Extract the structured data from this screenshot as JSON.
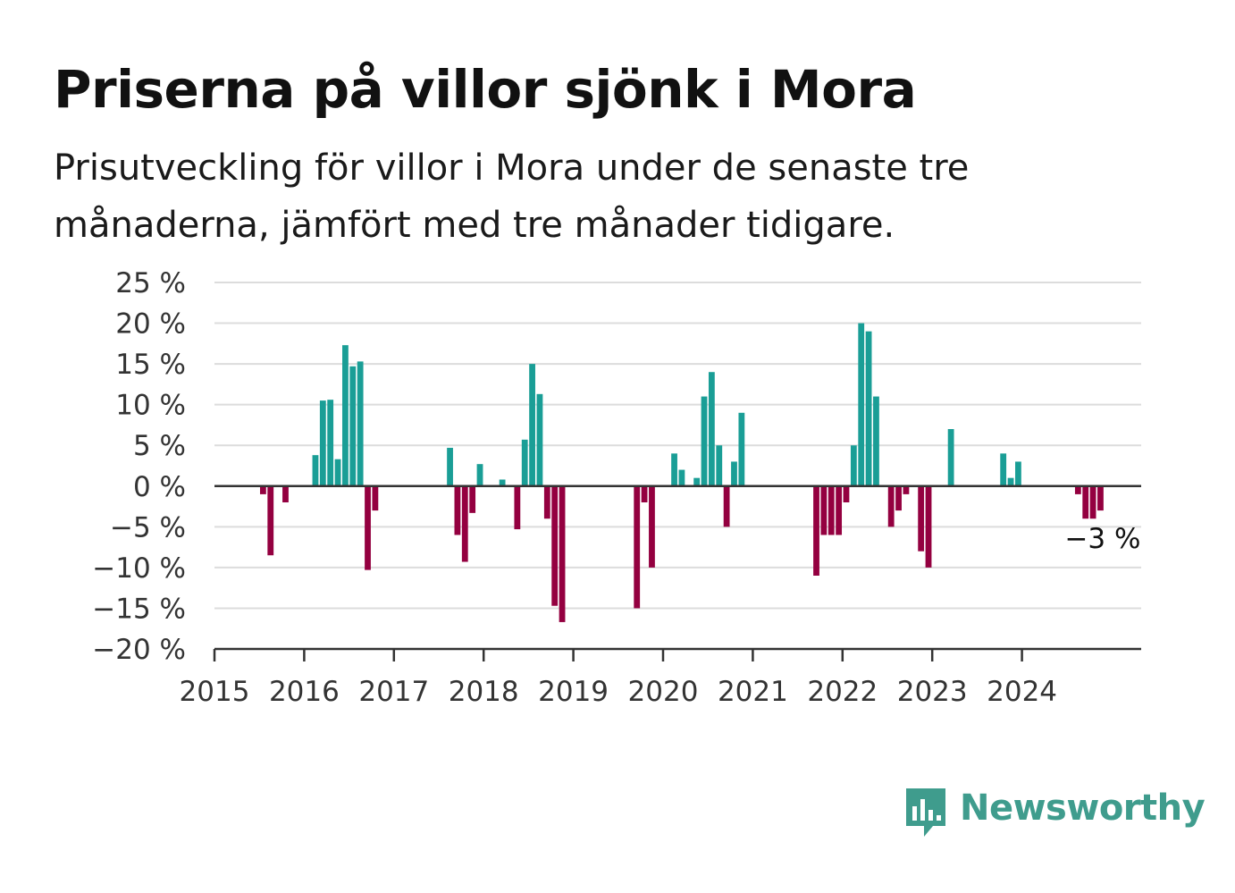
{
  "header": {
    "title": "Priserna på villor sjönk i Mora",
    "subtitle": "Prisutveckling för villor i Mora under de senaste tre månaderna, jämfört med tre månader tidigare."
  },
  "chart_data": {
    "type": "bar",
    "y_unit": "%",
    "ylim": [
      -20,
      25
    ],
    "y_ticks": [
      25,
      20,
      15,
      10,
      5,
      0,
      -5,
      -10,
      -15,
      -20
    ],
    "y_tick_labels": [
      "25 %",
      "20 %",
      "15 %",
      "10 %",
      "5 %",
      "0 %",
      "−5 %",
      "−10 %",
      "−15 %",
      "−20 %"
    ],
    "x_ticks": [
      "2015",
      "2016",
      "2017",
      "2018",
      "2019",
      "2020",
      "2021",
      "2022",
      "2023",
      "2024"
    ],
    "grid": true,
    "colors": {
      "positive": "#1a9e96",
      "negative": "#940040",
      "grid": "#dcdcdc",
      "axis": "#333333"
    },
    "annotation": {
      "label": "−3 %",
      "date": "2024-11",
      "value": -3
    },
    "series": [
      {
        "points": [
          {
            "date": "2015-01",
            "value": 0
          },
          {
            "date": "2015-02",
            "value": 0
          },
          {
            "date": "2015-03",
            "value": 0
          },
          {
            "date": "2015-04",
            "value": 0
          },
          {
            "date": "2015-05",
            "value": 0
          },
          {
            "date": "2015-06",
            "value": 0
          },
          {
            "date": "2015-07",
            "value": -1
          },
          {
            "date": "2015-08",
            "value": -8.5
          },
          {
            "date": "2015-09",
            "value": 0
          },
          {
            "date": "2015-10",
            "value": -2
          },
          {
            "date": "2015-11",
            "value": 0
          },
          {
            "date": "2015-12",
            "value": 0
          },
          {
            "date": "2016-01",
            "value": 0
          },
          {
            "date": "2016-02",
            "value": 3.8
          },
          {
            "date": "2016-03",
            "value": 10.5
          },
          {
            "date": "2016-04",
            "value": 10.6
          },
          {
            "date": "2016-05",
            "value": 3.3
          },
          {
            "date": "2016-06",
            "value": 17.3
          },
          {
            "date": "2016-07",
            "value": 14.7
          },
          {
            "date": "2016-08",
            "value": 15.3
          },
          {
            "date": "2016-09",
            "value": -10.3
          },
          {
            "date": "2016-10",
            "value": -3
          },
          {
            "date": "2016-11",
            "value": 0
          },
          {
            "date": "2016-12",
            "value": 0
          },
          {
            "date": "2017-01",
            "value": 0
          },
          {
            "date": "2017-02",
            "value": 0
          },
          {
            "date": "2017-03",
            "value": 0
          },
          {
            "date": "2017-04",
            "value": 0
          },
          {
            "date": "2017-05",
            "value": 0
          },
          {
            "date": "2017-06",
            "value": 0
          },
          {
            "date": "2017-07",
            "value": 0
          },
          {
            "date": "2017-08",
            "value": 4.7
          },
          {
            "date": "2017-09",
            "value": -6
          },
          {
            "date": "2017-10",
            "value": -9.3
          },
          {
            "date": "2017-11",
            "value": -3.3
          },
          {
            "date": "2017-12",
            "value": 2.7
          },
          {
            "date": "2018-01",
            "value": 0
          },
          {
            "date": "2018-02",
            "value": 0
          },
          {
            "date": "2018-03",
            "value": 0.8
          },
          {
            "date": "2018-04",
            "value": 0
          },
          {
            "date": "2018-05",
            "value": -5.3
          },
          {
            "date": "2018-06",
            "value": 5.7
          },
          {
            "date": "2018-07",
            "value": 15
          },
          {
            "date": "2018-08",
            "value": 11.3
          },
          {
            "date": "2018-09",
            "value": -4
          },
          {
            "date": "2018-10",
            "value": -14.7
          },
          {
            "date": "2018-11",
            "value": -16.7
          },
          {
            "date": "2018-12",
            "value": 0
          },
          {
            "date": "2019-01",
            "value": 0
          },
          {
            "date": "2019-02",
            "value": 0
          },
          {
            "date": "2019-03",
            "value": 0
          },
          {
            "date": "2019-04",
            "value": 0
          },
          {
            "date": "2019-05",
            "value": 0
          },
          {
            "date": "2019-06",
            "value": 0
          },
          {
            "date": "2019-07",
            "value": 0
          },
          {
            "date": "2019-08",
            "value": 0
          },
          {
            "date": "2019-09",
            "value": -15
          },
          {
            "date": "2019-10",
            "value": -2
          },
          {
            "date": "2019-11",
            "value": -10
          },
          {
            "date": "2019-12",
            "value": 0
          },
          {
            "date": "2020-01",
            "value": 0
          },
          {
            "date": "2020-02",
            "value": 4
          },
          {
            "date": "2020-03",
            "value": 2
          },
          {
            "date": "2020-04",
            "value": 0
          },
          {
            "date": "2020-05",
            "value": 1
          },
          {
            "date": "2020-06",
            "value": 11
          },
          {
            "date": "2020-07",
            "value": 14
          },
          {
            "date": "2020-08",
            "value": 5
          },
          {
            "date": "2020-09",
            "value": -5
          },
          {
            "date": "2020-10",
            "value": 3
          },
          {
            "date": "2020-11",
            "value": 9
          },
          {
            "date": "2020-12",
            "value": 0
          },
          {
            "date": "2021-01",
            "value": 0
          },
          {
            "date": "2021-02",
            "value": 0
          },
          {
            "date": "2021-03",
            "value": 0
          },
          {
            "date": "2021-04",
            "value": 0
          },
          {
            "date": "2021-05",
            "value": 0
          },
          {
            "date": "2021-06",
            "value": 0
          },
          {
            "date": "2021-07",
            "value": 0
          },
          {
            "date": "2021-08",
            "value": 0
          },
          {
            "date": "2021-09",
            "value": -11
          },
          {
            "date": "2021-10",
            "value": -6
          },
          {
            "date": "2021-11",
            "value": -6
          },
          {
            "date": "2021-12",
            "value": -6
          },
          {
            "date": "2022-01",
            "value": -2
          },
          {
            "date": "2022-02",
            "value": 5
          },
          {
            "date": "2022-03",
            "value": 20
          },
          {
            "date": "2022-04",
            "value": 19
          },
          {
            "date": "2022-05",
            "value": 11
          },
          {
            "date": "2022-06",
            "value": 0
          },
          {
            "date": "2022-07",
            "value": -5
          },
          {
            "date": "2022-08",
            "value": -3
          },
          {
            "date": "2022-09",
            "value": -1
          },
          {
            "date": "2022-10",
            "value": 0
          },
          {
            "date": "2022-11",
            "value": -8
          },
          {
            "date": "2022-12",
            "value": -10
          },
          {
            "date": "2023-01",
            "value": 0
          },
          {
            "date": "2023-02",
            "value": 0
          },
          {
            "date": "2023-03",
            "value": 7
          },
          {
            "date": "2023-04",
            "value": 0
          },
          {
            "date": "2023-05",
            "value": 0
          },
          {
            "date": "2023-06",
            "value": 0
          },
          {
            "date": "2023-07",
            "value": 0
          },
          {
            "date": "2023-08",
            "value": 0
          },
          {
            "date": "2023-09",
            "value": 0
          },
          {
            "date": "2023-10",
            "value": 4
          },
          {
            "date": "2023-11",
            "value": 1
          },
          {
            "date": "2023-12",
            "value": 3
          },
          {
            "date": "2024-01",
            "value": 0
          },
          {
            "date": "2024-02",
            "value": 0
          },
          {
            "date": "2024-03",
            "value": 0
          },
          {
            "date": "2024-04",
            "value": 0
          },
          {
            "date": "2024-05",
            "value": 0
          },
          {
            "date": "2024-06",
            "value": 0
          },
          {
            "date": "2024-07",
            "value": 0
          },
          {
            "date": "2024-08",
            "value": -1
          },
          {
            "date": "2024-09",
            "value": -4
          },
          {
            "date": "2024-10",
            "value": -4
          },
          {
            "date": "2024-11",
            "value": -3
          },
          {
            "date": "2024-12",
            "value": 0
          }
        ]
      }
    ]
  },
  "brand": {
    "name": "Newsworthy",
    "icon": "newsworthy-logo-icon",
    "color": "#3f9c8d"
  }
}
